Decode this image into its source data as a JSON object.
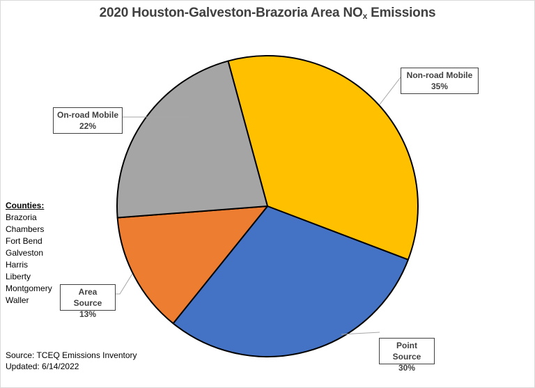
{
  "chart_data": {
    "type": "pie",
    "title": "2020 Houston-Galveston-Brazoria Area NOx Emissions",
    "title_main": "2020 Houston-Galveston-Brazoria Area NO",
    "title_sub": "x",
    "title_tail": " Emissions",
    "slices": [
      {
        "label": "Non-road Mobile",
        "value": 35,
        "display": "35%",
        "color": "#FFC000"
      },
      {
        "label": "Point Source",
        "value": 30,
        "display": "30%",
        "color": "#4472C4"
      },
      {
        "label": "Area Source",
        "value": 13,
        "display": "13%",
        "color": "#ED7D31"
      },
      {
        "label": "On-road Mobile",
        "value": 22,
        "display": "22%",
        "color": "#A5A5A5"
      }
    ],
    "legend_position": "none (data callouts)"
  },
  "counties": {
    "heading": "Counties:",
    "items": [
      "Brazoria",
      "Chambers",
      "Fort Bend",
      "Galveston",
      "Harris",
      "Liberty",
      "Montgomery",
      "Waller"
    ]
  },
  "footer": {
    "source": "Source: TCEQ Emissions Inventory",
    "updated": "Updated: 6/14/2022"
  }
}
